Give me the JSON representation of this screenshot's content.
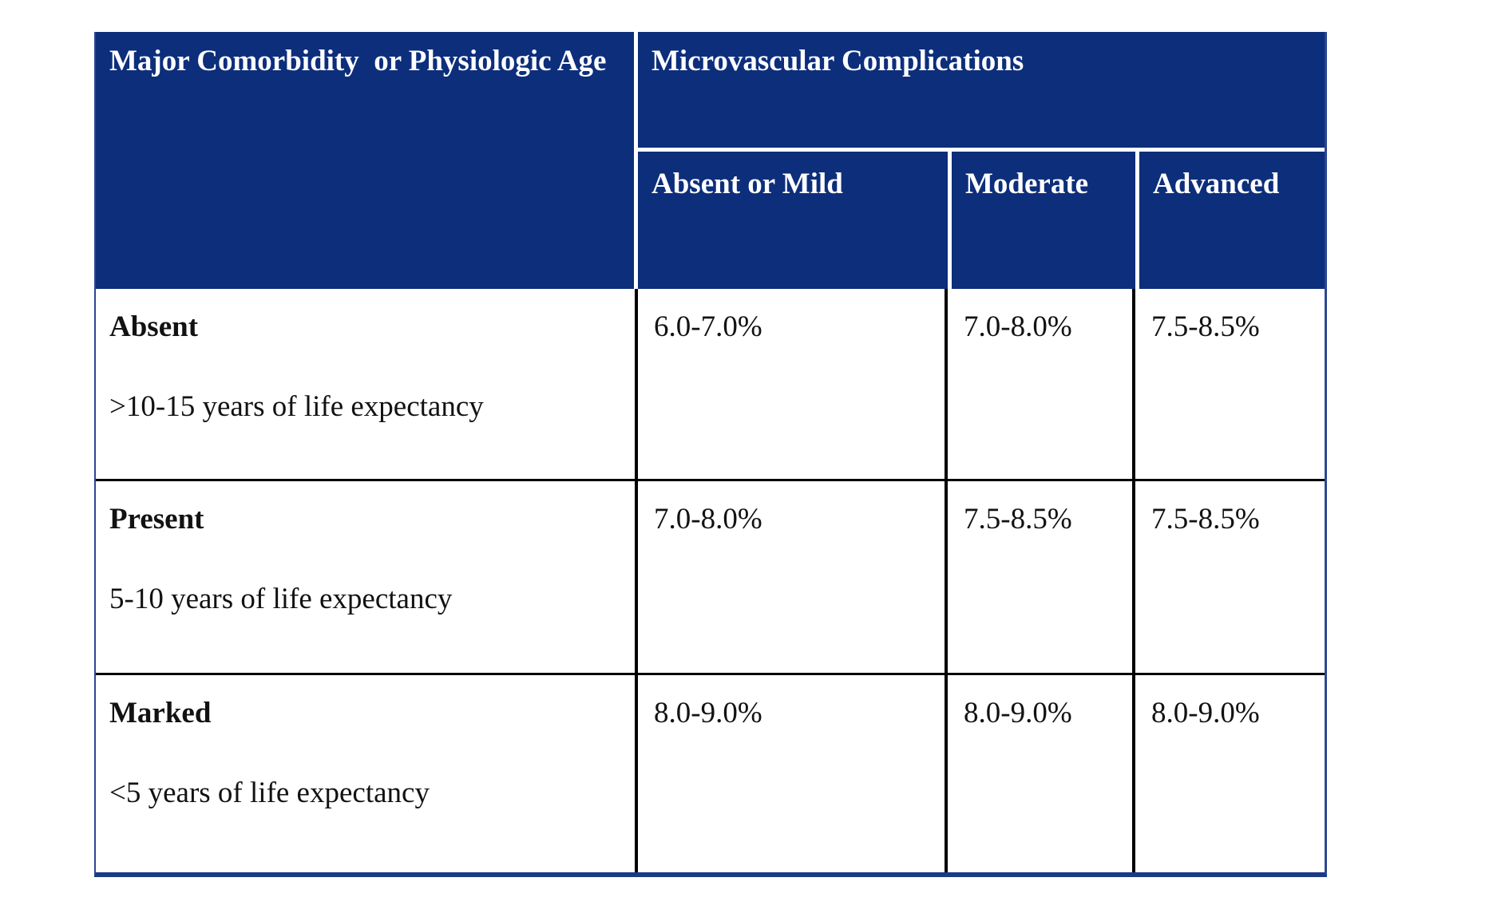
{
  "colors": {
    "header_bg": "#0d2e7b",
    "header_text": "#ffffff",
    "body_text": "#121212",
    "divider_black": "#000000",
    "header_divider_white": "#ffffff",
    "outer_side_blue": "#2b4693",
    "outer_bottom_blue": "#1b3a86",
    "page_bg": "#ffffff"
  },
  "table": {
    "header": {
      "corner": "Major Comorbidity  or Physiologic Age",
      "group": "Microvascular Complications",
      "columns": [
        "Absent or Mild",
        "Moderate",
        "Advanced"
      ]
    },
    "rows": [
      {
        "label": "Absent",
        "sublabel": ">10-15 years of life expectancy",
        "values": [
          "6.0-7.0%",
          "7.0-8.0%",
          "7.5-8.5%"
        ]
      },
      {
        "label": "Present",
        "sublabel": "5-10 years of life expectancy",
        "values": [
          "7.0-8.0%",
          "7.5-8.5%",
          "7.5-8.5%"
        ]
      },
      {
        "label": "Marked",
        "sublabel": "<5 years of life expectancy",
        "values": [
          "8.0-9.0%",
          "8.0-9.0%",
          "8.0-9.0%"
        ]
      }
    ]
  }
}
